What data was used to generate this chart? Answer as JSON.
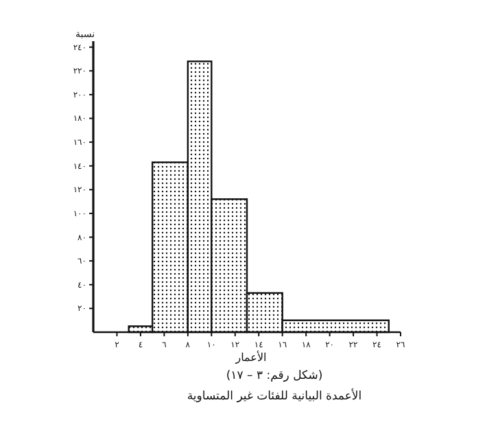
{
  "chart_data": {
    "type": "histogram",
    "xlabel": "الأعمار",
    "ylabel": "نسبة",
    "annotations": [
      "(شكل رقم: ٣ – ١٧)",
      "الأعمدة البيانية للفئات غير المتساوية"
    ],
    "bins": [
      3,
      5,
      8,
      10,
      13,
      16,
      25
    ],
    "values": [
      5,
      143,
      228,
      112,
      33,
      10
    ],
    "color": "#111111",
    "xlim": [
      0,
      26
    ],
    "xticks": [
      {
        "value": 2,
        "label": "٢"
      },
      {
        "value": 4,
        "label": "٤"
      },
      {
        "value": 6,
        "label": "٦"
      },
      {
        "value": 8,
        "label": "٨"
      },
      {
        "value": 10,
        "label": "١٠"
      },
      {
        "value": 12,
        "label": "١٢"
      },
      {
        "value": 14,
        "label": "١٤"
      },
      {
        "value": 16,
        "label": "١٦"
      },
      {
        "value": 18,
        "label": "١٨"
      },
      {
        "value": 20,
        "label": "٢٠"
      },
      {
        "value": 22,
        "label": "٢٢"
      },
      {
        "value": 24,
        "label": "٢٤"
      },
      {
        "value": 26,
        "label": "٢٦"
      }
    ],
    "ylim": [
      0,
      245
    ],
    "yticks": [
      {
        "value": 20,
        "label": "٢٠"
      },
      {
        "value": 40,
        "label": "٤٠"
      },
      {
        "value": 60,
        "label": "٦٠"
      },
      {
        "value": 80,
        "label": "٨٠"
      },
      {
        "value": 100,
        "label": "١٠٠"
      },
      {
        "value": 120,
        "label": "١٢٠"
      },
      {
        "value": 140,
        "label": "١٤٠"
      },
      {
        "value": 160,
        "label": "١٦٠"
      },
      {
        "value": 180,
        "label": "١٨٠"
      },
      {
        "value": 200,
        "label": "٢٠٠"
      },
      {
        "value": 220,
        "label": "٢٢٠"
      },
      {
        "value": 240,
        "label": "٢٤٠"
      }
    ]
  }
}
